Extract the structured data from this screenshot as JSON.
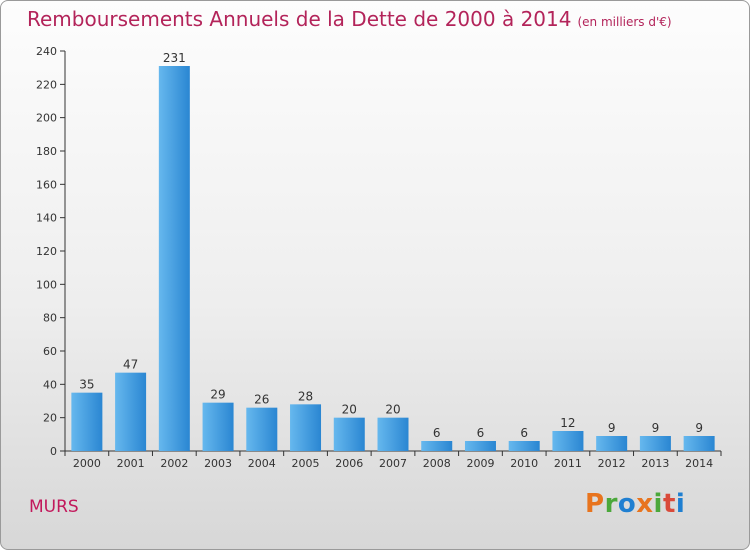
{
  "header": {
    "title": "Remboursements Annuels de la Dette de 2000 à 2014",
    "unit": "(en milliers d'€)"
  },
  "footer": {
    "commune": "MURS",
    "logo": "Proxiti",
    "logo_colors": [
      "#e8741e",
      "#4ba83b",
      "#1f7fd1",
      "#e8741e",
      "#4ba83b",
      "#d94a3a",
      "#1f7fd1"
    ]
  },
  "colors": {
    "bar_light": "#66b8ee",
    "bar_dark": "#2a86d2",
    "title": "#b3245a"
  },
  "chart_data": {
    "type": "bar",
    "title": "Remboursements Annuels de la Dette de 2000 à 2014",
    "subtitle": "(en milliers d'€)",
    "xlabel": "",
    "ylabel": "",
    "categories": [
      "2000",
      "2001",
      "2002",
      "2003",
      "2004",
      "2005",
      "2006",
      "2007",
      "2008",
      "2009",
      "2010",
      "2011",
      "2012",
      "2013",
      "2014"
    ],
    "values": [
      35,
      47,
      231,
      29,
      26,
      28,
      20,
      20,
      6,
      6,
      6,
      12,
      9,
      9,
      9
    ],
    "ylim": [
      0,
      240
    ],
    "yticks": [
      0,
      20,
      40,
      60,
      80,
      100,
      120,
      140,
      160,
      180,
      200,
      220,
      240
    ],
    "grid": false,
    "legend": "none"
  }
}
